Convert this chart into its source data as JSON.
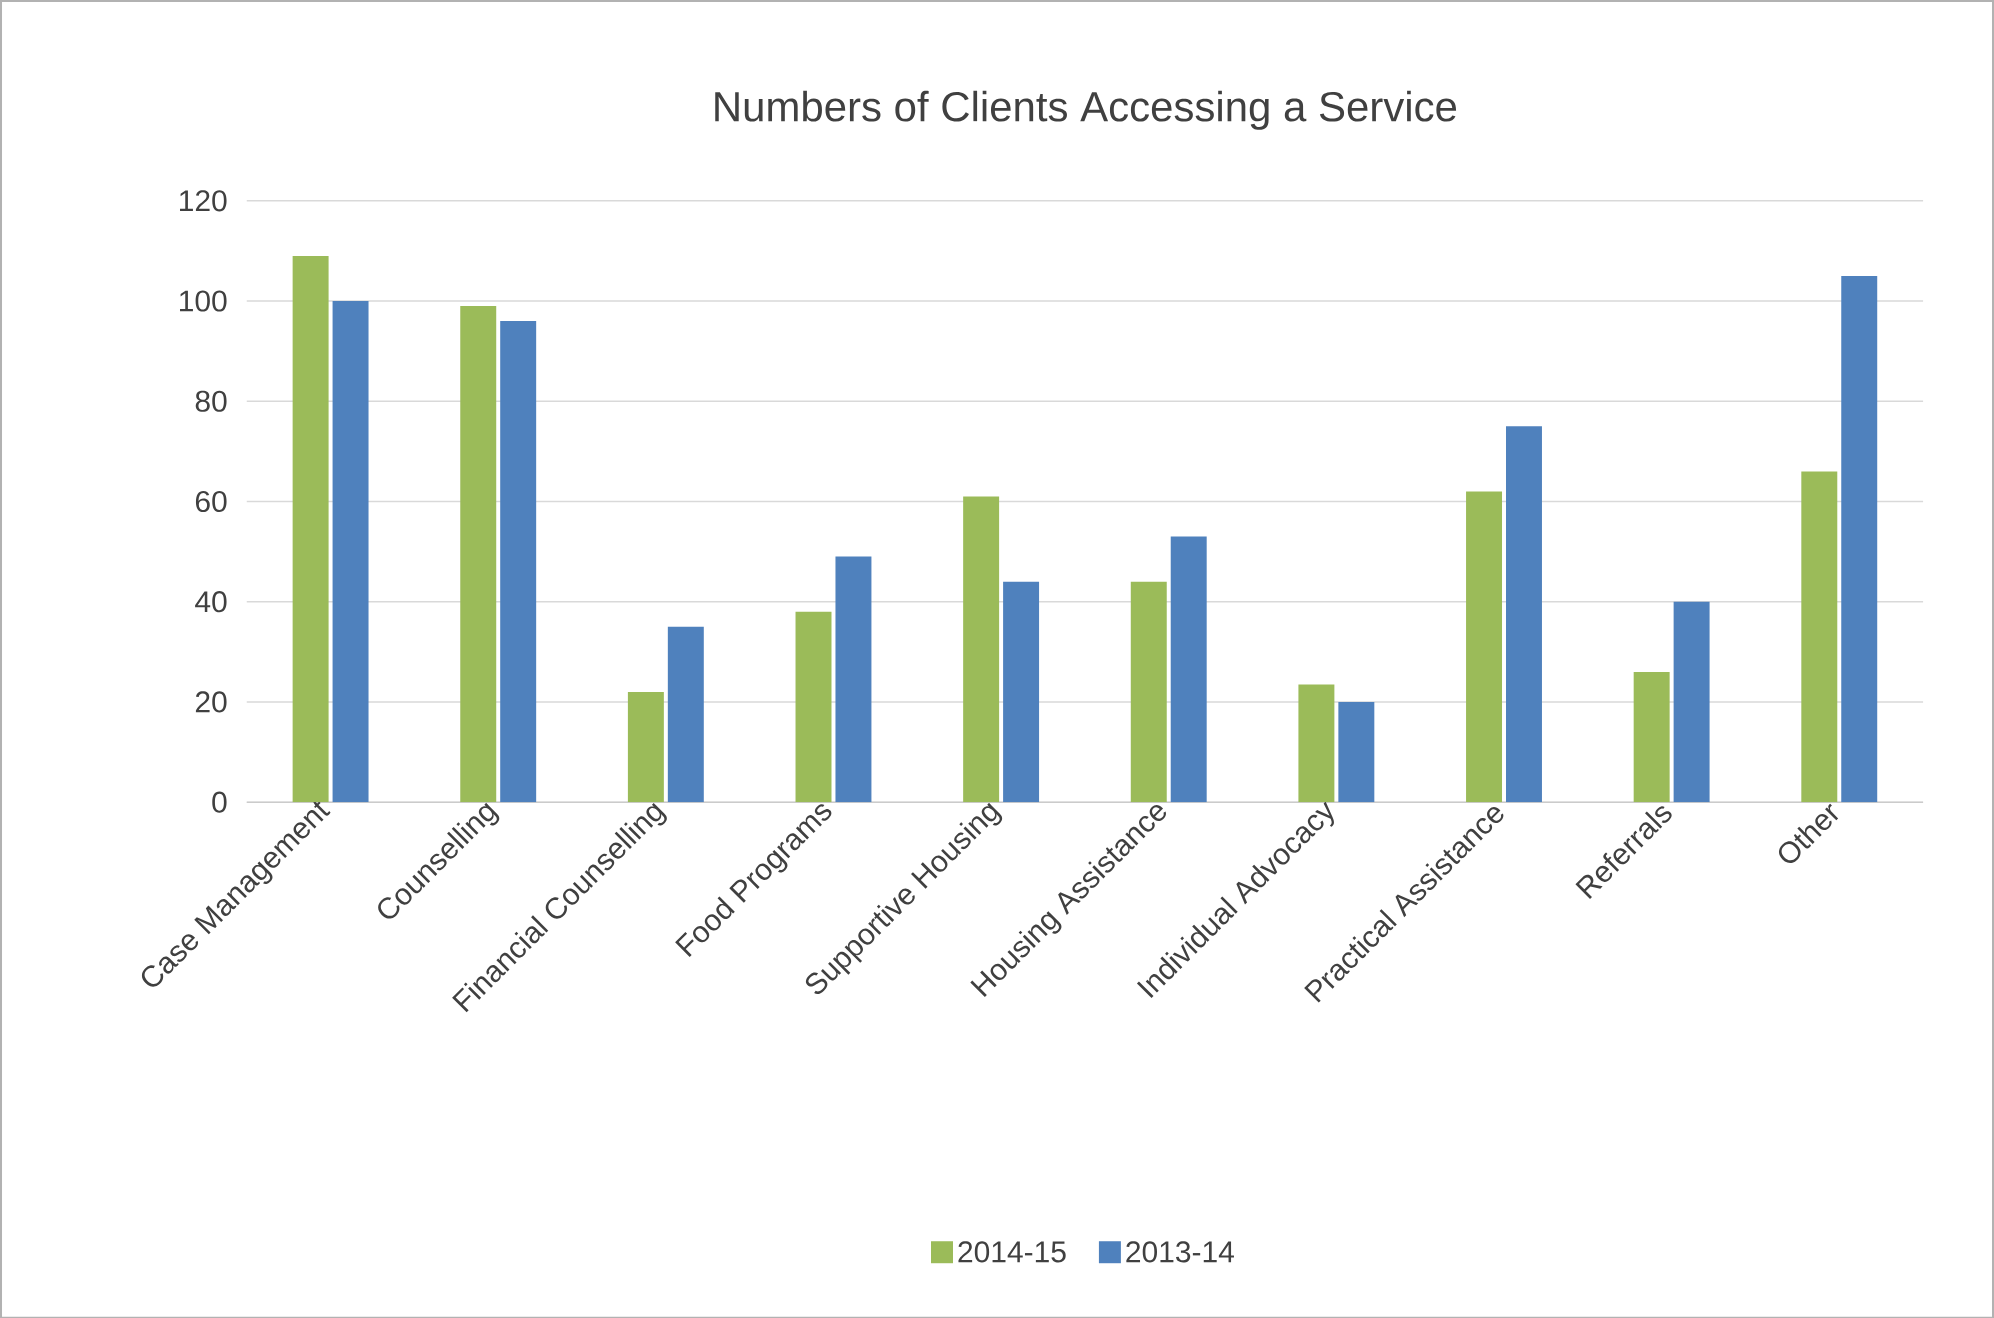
{
  "chart_data": {
    "type": "bar",
    "title": "Numbers of Clients Accessing a Service",
    "categories": [
      "Case Management",
      "Counselling",
      "Financial Counselling",
      "Food Programs",
      "Supportive Housing",
      "Housing Assistance",
      "Individual Advocacy",
      "Practical Assistance",
      "Referrals",
      "Other"
    ],
    "series": [
      {
        "name": "2014-15",
        "color": "#9bbb59",
        "values": [
          109,
          99,
          22,
          38,
          61,
          44,
          23.5,
          62,
          26,
          66
        ]
      },
      {
        "name": "2013-14",
        "color": "#4f81bd",
        "values": [
          100,
          96,
          35,
          49,
          44,
          53,
          20,
          75,
          40,
          105
        ]
      }
    ],
    "ylim": [
      0,
      120
    ],
    "yticks": [
      0,
      20,
      40,
      60,
      80,
      100,
      120
    ],
    "grid": "y",
    "legend": "bottom"
  }
}
